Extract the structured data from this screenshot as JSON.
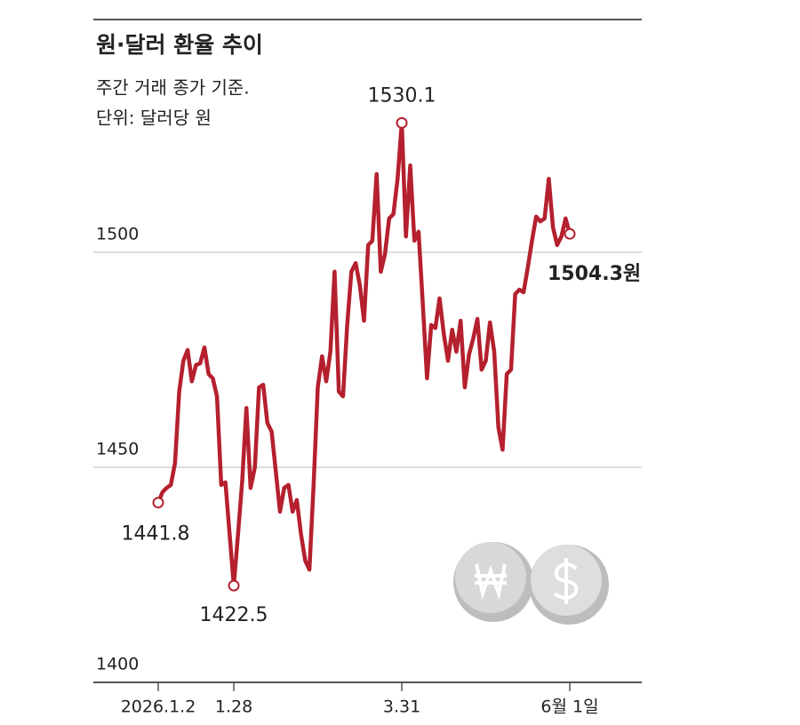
{
  "chart_data": {
    "type": "line",
    "title": "원·달러 환율 추이",
    "subtitle": "주간 거래 종가 기준.",
    "unit_note": "단위: 달러당 원",
    "categories": [
      "2026.1.2",
      null,
      null,
      null,
      null,
      null,
      null,
      null,
      null,
      null,
      null,
      null,
      null,
      null,
      null,
      null,
      null,
      null,
      "1.28",
      null,
      null,
      null,
      null,
      null,
      null,
      null,
      null,
      null,
      null,
      null,
      null,
      null,
      null,
      null,
      null,
      null,
      null,
      null,
      null,
      null,
      null,
      null,
      null,
      null,
      null,
      null,
      null,
      null,
      null,
      null,
      null,
      null,
      null,
      null,
      null,
      null,
      null,
      null,
      "3.31",
      null,
      null,
      null,
      null,
      null,
      null,
      null,
      null,
      null,
      null,
      null,
      null,
      null,
      null,
      null,
      null,
      null,
      null,
      null,
      null,
      null,
      null,
      null,
      null,
      null,
      null,
      null,
      null,
      null,
      null,
      null,
      null,
      null,
      null,
      null,
      null,
      null,
      null,
      null,
      "6월 1일"
    ],
    "series": [
      {
        "color": "#b5202e",
        "values": [
          1441.8,
          1444.2,
          1445.2,
          1445.9,
          1451,
          1467.6,
          1474.8,
          1477.3,
          1470,
          1473.8,
          1474.2,
          1477.9,
          1471.7,
          1470.7,
          1466.5,
          1445.9,
          1446.5,
          1434.5,
          1422.5,
          1434.5,
          1446.9,
          1463.8,
          1445.2,
          1450,
          1468.6,
          1469.2,
          1460.3,
          1458.3,
          1449,
          1439.7,
          1445.2,
          1445.9,
          1439.7,
          1442.4,
          1434.5,
          1428.3,
          1426.2,
          1445.9,
          1468.6,
          1475.8,
          1470,
          1476.9,
          1495.5,
          1467.6,
          1466.5,
          1483.1,
          1495.5,
          1497.5,
          1492.4,
          1484.1,
          1501.7,
          1502.7,
          1518.2,
          1495.5,
          1499.6,
          1507.9,
          1508.9,
          1517.1,
          1530.1,
          1503.7,
          1520.2,
          1502.7,
          1504.8,
          1488.2,
          1470.7,
          1483.1,
          1482.4,
          1489.3,
          1481,
          1474.8,
          1482,
          1476.9,
          1484.1,
          1468.6,
          1476.2,
          1479.9,
          1484.5,
          1472.7,
          1474.8,
          1483.7,
          1476.9,
          1459.3,
          1454.1,
          1471.7,
          1472.7,
          1490.3,
          1491.3,
          1490.7,
          1496.5,
          1502.7,
          1508.3,
          1507.2,
          1507.9,
          1517.1,
          1505.8,
          1501.7,
          1503.7,
          1507.9,
          1504.3
        ],
        "value_labels": [
          "1441.8",
          null,
          null,
          null,
          null,
          null,
          null,
          null,
          null,
          null,
          null,
          null,
          null,
          null,
          null,
          null,
          null,
          null,
          "1422.5",
          null,
          null,
          null,
          null,
          null,
          null,
          null,
          null,
          null,
          null,
          null,
          null,
          null,
          null,
          null,
          null,
          null,
          null,
          null,
          null,
          null,
          null,
          null,
          null,
          null,
          null,
          null,
          null,
          null,
          null,
          null,
          null,
          null,
          null,
          null,
          null,
          null,
          null,
          null,
          "1530.1",
          null,
          null,
          null,
          null,
          null,
          null,
          null,
          null,
          null,
          null,
          null,
          null,
          null,
          null,
          null,
          null,
          null,
          null,
          null,
          null,
          null,
          null,
          null,
          null,
          null,
          null,
          null,
          null,
          null,
          null,
          null,
          null,
          null,
          null,
          null,
          null,
          null,
          null,
          null,
          "1504.3원"
        ]
      }
    ],
    "ylim": [
      1400,
      1550
    ],
    "yticks": [
      1400,
      1450,
      1500
    ],
    "grid": true
  }
}
